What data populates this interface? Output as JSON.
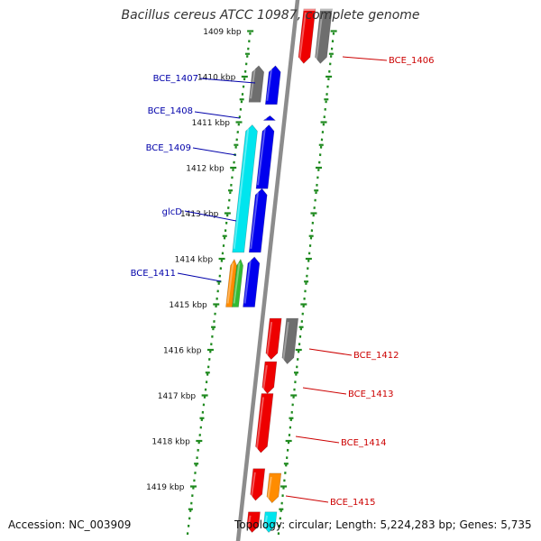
{
  "title": "Bacillus cereus ATCC 10987, complete genome",
  "accession_line": "Accession: NC_003909",
  "summary_line": "Topology: circular; Length: 5,224,283 bp; Genes: 5,735",
  "colors": {
    "backbone": "#8c8c8c",
    "ruler": "#1f8a1f",
    "tick_label": "#111111",
    "minus_label": "#0000aa",
    "plus_label": "#cc0000",
    "blue": "#0000ee",
    "cyan": "#00e5ee",
    "gray": "#6e6e6e",
    "red": "#ee0000",
    "orange": "#ff8c00",
    "green": "#33bb33"
  },
  "ticks": [
    "1409 kbp",
    "1410 kbp",
    "1411 kbp",
    "1412 kbp",
    "1413 kbp",
    "1414 kbp",
    "1415 kbp",
    "1416 kbp",
    "1417 kbp",
    "1418 kbp",
    "1419 kbp"
  ],
  "minus_labels": [
    "BCE_1407",
    "BCE_1408",
    "BCE_1409",
    "glcD",
    "BCE_1411"
  ],
  "plus_labels": [
    "BCE_1406",
    "BCE_1412",
    "BCE_1413",
    "BCE_1414",
    "BCE_1415"
  ],
  "features": [
    {
      "strand": "-",
      "track": 2,
      "start_kbp": 1409.75,
      "end_kbp": 1410.55,
      "color": "gray"
    },
    {
      "strand": "-",
      "track": 1,
      "start_kbp": 1409.75,
      "end_kbp": 1410.6,
      "color": "blue"
    },
    {
      "strand": "-",
      "track": 1,
      "start_kbp": 1410.85,
      "end_kbp": 1410.95,
      "color": "blue"
    },
    {
      "strand": "-",
      "track": 2,
      "start_kbp": 1411.05,
      "end_kbp": 1413.85,
      "color": "cyan"
    },
    {
      "strand": "-",
      "track": 1,
      "start_kbp": 1411.05,
      "end_kbp": 1412.45,
      "color": "blue"
    },
    {
      "strand": "-",
      "track": 1,
      "start_kbp": 1412.45,
      "end_kbp": 1413.85,
      "color": "blue"
    },
    {
      "strand": "-",
      "track": 2,
      "start_kbp": 1414.0,
      "end_kbp": 1415.05,
      "color": "orange"
    },
    {
      "strand": "-",
      "track": 2,
      "start_kbp": 1414.0,
      "end_kbp": 1415.05,
      "color": "green"
    },
    {
      "strand": "-",
      "track": 1,
      "start_kbp": 1413.95,
      "end_kbp": 1415.05,
      "color": "blue"
    },
    {
      "strand": "+",
      "track": 1,
      "start_kbp": 1408.5,
      "end_kbp": 1409.7,
      "color": "red"
    },
    {
      "strand": "+",
      "track": 2,
      "start_kbp": 1408.5,
      "end_kbp": 1409.7,
      "color": "gray"
    },
    {
      "strand": "+",
      "track": 1,
      "start_kbp": 1415.3,
      "end_kbp": 1416.2,
      "color": "red"
    },
    {
      "strand": "+",
      "track": 2,
      "start_kbp": 1415.3,
      "end_kbp": 1416.3,
      "color": "gray"
    },
    {
      "strand": "+",
      "track": 1,
      "start_kbp": 1416.25,
      "end_kbp": 1416.95,
      "color": "red"
    },
    {
      "strand": "+",
      "track": 1,
      "start_kbp": 1416.95,
      "end_kbp": 1418.25,
      "color": "red"
    },
    {
      "strand": "+",
      "track": 1,
      "start_kbp": 1418.6,
      "end_kbp": 1419.3,
      "color": "red"
    },
    {
      "strand": "+",
      "track": 2,
      "start_kbp": 1418.7,
      "end_kbp": 1419.35,
      "color": "orange"
    },
    {
      "strand": "+",
      "track": 1,
      "start_kbp": 1419.55,
      "end_kbp": 1420.0,
      "color": "red"
    },
    {
      "strand": "+",
      "track": 2,
      "start_kbp": 1419.55,
      "end_kbp": 1420.0,
      "color": "cyan"
    }
  ]
}
